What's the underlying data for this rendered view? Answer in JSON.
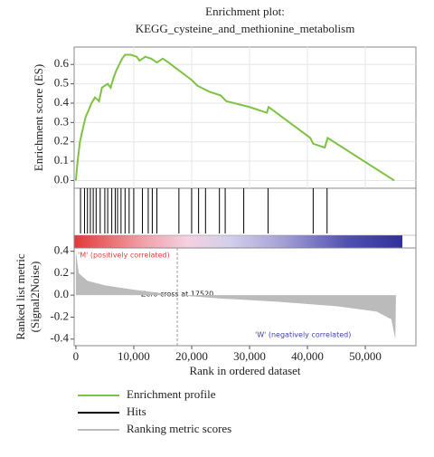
{
  "chart_data": [
    {
      "type": "line",
      "title": [
        "Enrichment plot:",
        "KEGG_cysteine_and_methionine_metabolism"
      ],
      "ylabel": "Enrichment score (ES)",
      "x": [
        0,
        300,
        700,
        1300,
        1700,
        2300,
        2700,
        3300,
        4000,
        4500,
        5500,
        6000,
        6500,
        7000,
        7500,
        8000,
        8500,
        9500,
        10500,
        11000,
        12000,
        13000,
        14000,
        15000,
        16000,
        20000,
        21000,
        23000,
        25000,
        26000,
        30000,
        33000,
        33300,
        40500,
        41000,
        43000,
        43500,
        55000
      ],
      "series": [
        {
          "name": "Enrichment profile",
          "color": "#7dc242",
          "values": [
            0,
            0.1,
            0.2,
            0.28,
            0.33,
            0.37,
            0.4,
            0.43,
            0.41,
            0.48,
            0.5,
            0.48,
            0.53,
            0.57,
            0.6,
            0.63,
            0.65,
            0.65,
            0.64,
            0.62,
            0.64,
            0.63,
            0.61,
            0.63,
            0.61,
            0.52,
            0.49,
            0.46,
            0.44,
            0.41,
            0.38,
            0.35,
            0.38,
            0.22,
            0.19,
            0.17,
            0.22,
            0
          ]
        }
      ],
      "ylim": [
        -0.04,
        0.69
      ],
      "yticks": [
        {
          "value": 0,
          "label": "0.0"
        },
        0.1,
        0.2,
        0.3,
        0.4,
        0.5,
        0.6
      ],
      "grid": true
    },
    {
      "type": "rug",
      "x": [
        800,
        1500,
        2000,
        2500,
        3000,
        3500,
        4200,
        5000,
        5500,
        6200,
        6800,
        7200,
        7800,
        8500,
        9200,
        10000,
        11500,
        12500,
        13200,
        14000,
        17800,
        20000,
        21200,
        22400,
        24800,
        25800,
        29000,
        33200,
        41000,
        43400
      ],
      "series": [
        {
          "name": "Hits",
          "color": "#000000"
        }
      ]
    },
    {
      "type": "area",
      "ylabel": [
        "Ranked list metric",
        "(Signal2Noise)"
      ],
      "xlabel": "Rank in ordered dataset",
      "annotations": [
        "'M' (positively correlated)",
        "Zero cross at 17520",
        "'W' (negatively correlated)"
      ],
      "zero_cross": 17520,
      "x": [
        0,
        500,
        2000,
        5000,
        10000,
        17520,
        25000,
        35000,
        45000,
        52000,
        54500,
        55200,
        55300
      ],
      "series": [
        {
          "name": "Ranking metric scores",
          "color": "#bbbbbb",
          "values": [
            0.4,
            0.2,
            0.13,
            0.09,
            0.05,
            0,
            -0.03,
            -0.06,
            -0.1,
            -0.15,
            -0.22,
            -0.4,
            0
          ]
        }
      ],
      "ylim": [
        -0.46,
        0.43
      ],
      "yticks": [
        0.4,
        0.2,
        {
          "value": 0,
          "label": "0.0"
        },
        -0.2,
        -0.4
      ],
      "xlim": [
        -300,
        58750
      ],
      "xticks": [
        0,
        {
          "value": 10000,
          "label": "10,000"
        },
        {
          "value": 20000,
          "label": "20,000"
        },
        {
          "value": 30000,
          "label": "30,000"
        },
        {
          "value": 40000,
          "label": "40,000"
        },
        {
          "value": 50000,
          "label": "50,000"
        }
      ]
    }
  ]
}
